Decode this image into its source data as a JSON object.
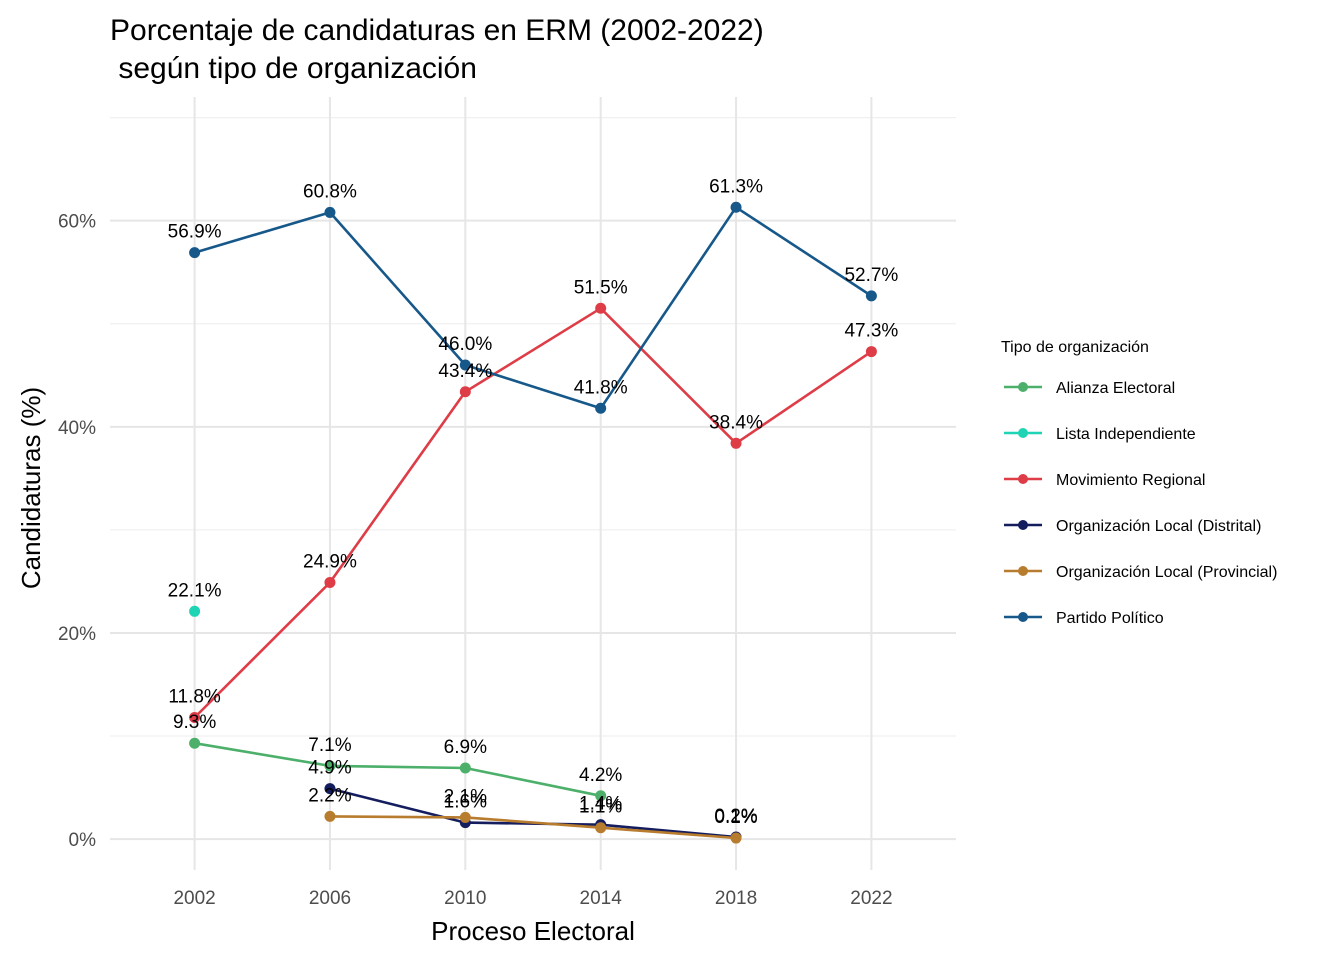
{
  "chart_data": {
    "type": "line",
    "title": "Porcentaje de candidaturas en ERM (2002-2022)",
    "subtitle": " según tipo de organización",
    "xlabel": "Proceso Electoral",
    "ylabel": "Candidaturas (%)",
    "x": [
      2002,
      2006,
      2010,
      2014,
      2018,
      2022
    ],
    "x_tick_labels": [
      "2002",
      "2006",
      "2010",
      "2014",
      "2018",
      "2022"
    ],
    "xlim": [
      1999.5,
      2024.5
    ],
    "ylim": [
      -3,
      72
    ],
    "y_ticks": [
      0,
      20,
      40,
      60
    ],
    "y_tick_labels": [
      "0%",
      "20%",
      "40%",
      "60%"
    ],
    "grid": true,
    "legend": {
      "title": "Tipo de organización",
      "position": "right"
    },
    "series": [
      {
        "name": "Alianza Electoral",
        "color": "#4caf6a",
        "points": [
          {
            "x": 2002,
            "y": 9.3,
            "label": "9.3%"
          },
          {
            "x": 2006,
            "y": 7.1,
            "label": "7.1%"
          },
          {
            "x": 2010,
            "y": 6.9,
            "label": "6.9%"
          },
          {
            "x": 2014,
            "y": 4.2,
            "label": "4.2%"
          }
        ]
      },
      {
        "name": "Lista Independiente",
        "color": "#1fd4b4",
        "points": [
          {
            "x": 2002,
            "y": 22.1,
            "label": "22.1%"
          }
        ]
      },
      {
        "name": "Movimiento Regional",
        "color": "#de3d47",
        "points": [
          {
            "x": 2002,
            "y": 11.8,
            "label": "11.8%"
          },
          {
            "x": 2006,
            "y": 24.9,
            "label": "24.9%"
          },
          {
            "x": 2010,
            "y": 43.4,
            "label": "43.4%"
          },
          {
            "x": 2014,
            "y": 51.5,
            "label": "51.5%"
          },
          {
            "x": 2018,
            "y": 38.4,
            "label": "38.4%"
          },
          {
            "x": 2022,
            "y": 47.3,
            "label": "47.3%"
          }
        ]
      },
      {
        "name": "Organización Local (Distrital)",
        "color": "#141d5e",
        "points": [
          {
            "x": 2006,
            "y": 4.9,
            "label": "4.9%"
          },
          {
            "x": 2010,
            "y": 1.6,
            "label": "1.6%"
          },
          {
            "x": 2014,
            "y": 1.4,
            "label": "1.4%"
          },
          {
            "x": 2018,
            "y": 0.2,
            "label": "0.2%"
          }
        ]
      },
      {
        "name": "Organización Local (Provincial)",
        "color": "#b87c2e",
        "points": [
          {
            "x": 2006,
            "y": 2.2,
            "label": "2.2%"
          },
          {
            "x": 2010,
            "y": 2.1,
            "label": "2.1%"
          },
          {
            "x": 2014,
            "y": 1.1,
            "label": "1.1%"
          },
          {
            "x": 2018,
            "y": 0.1,
            "label": "0.1%"
          }
        ]
      },
      {
        "name": "Partido Político",
        "color": "#17588a",
        "points": [
          {
            "x": 2002,
            "y": 56.9,
            "label": "56.9%"
          },
          {
            "x": 2006,
            "y": 60.8,
            "label": "60.8%"
          },
          {
            "x": 2010,
            "y": 46.0,
            "label": "46.0%"
          },
          {
            "x": 2014,
            "y": 41.8,
            "label": "41.8%"
          },
          {
            "x": 2018,
            "y": 61.3,
            "label": "61.3%"
          },
          {
            "x": 2022,
            "y": 52.7,
            "label": "52.7%"
          }
        ]
      }
    ]
  }
}
